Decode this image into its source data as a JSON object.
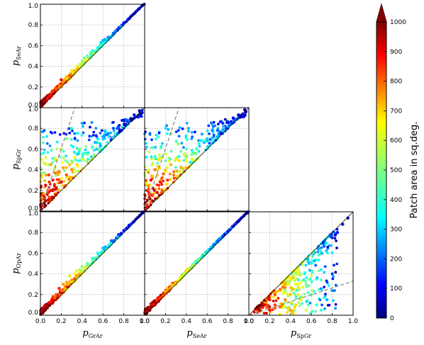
{
  "colorbar": {
    "label": "Patch area in sq.deg.",
    "range": [
      0,
      1000
    ],
    "ticks": [
      "0",
      "100",
      "200",
      "300",
      "400",
      "500",
      "600",
      "700",
      "800",
      "900",
      "1000"
    ],
    "colormap": "jet",
    "extend": "max"
  },
  "chart_data": [
    {
      "type": "scatter",
      "panel": "top-left",
      "xlabel": "",
      "ylabel_main": "p",
      "ylabel_sub": "SeAr",
      "xlim": [
        0,
        1
      ],
      "ylim": [
        0,
        1
      ],
      "grid": true,
      "x_ticks": [],
      "y_ticks": [
        "0.0",
        "0.2",
        "0.4",
        "0.6",
        "0.8",
        "1.0"
      ],
      "reference_lines": [
        {
          "style": "solid",
          "color": "#000000",
          "points": [
            [
              0,
              0
            ],
            [
              1,
              1
            ]
          ]
        }
      ],
      "trend": "tight",
      "points": [
        [
          0.03,
          0.05,
          980
        ],
        [
          0.05,
          0.07,
          950
        ],
        [
          0.08,
          0.11,
          900
        ],
        [
          0.1,
          0.12,
          860
        ],
        [
          0.12,
          0.16,
          820
        ],
        [
          0.15,
          0.18,
          780
        ],
        [
          0.18,
          0.22,
          760
        ],
        [
          0.2,
          0.27,
          900
        ],
        [
          0.22,
          0.25,
          720
        ],
        [
          0.25,
          0.3,
          680
        ],
        [
          0.28,
          0.31,
          800
        ],
        [
          0.3,
          0.36,
          650
        ],
        [
          0.33,
          0.35,
          700
        ],
        [
          0.35,
          0.4,
          600
        ],
        [
          0.38,
          0.42,
          560
        ],
        [
          0.4,
          0.45,
          520
        ],
        [
          0.42,
          0.48,
          480
        ],
        [
          0.45,
          0.5,
          460
        ],
        [
          0.48,
          0.53,
          440
        ],
        [
          0.5,
          0.55,
          420
        ],
        [
          0.55,
          0.58,
          380
        ],
        [
          0.58,
          0.63,
          340
        ],
        [
          0.6,
          0.65,
          310
        ],
        [
          0.62,
          0.66,
          290
        ],
        [
          0.65,
          0.68,
          260
        ],
        [
          0.7,
          0.72,
          220
        ],
        [
          0.75,
          0.77,
          180
        ],
        [
          0.8,
          0.82,
          150
        ],
        [
          0.85,
          0.86,
          120
        ],
        [
          0.9,
          0.91,
          90
        ],
        [
          0.95,
          0.96,
          60
        ],
        [
          0.98,
          0.99,
          30
        ]
      ]
    },
    {
      "type": "scatter",
      "panel": "middle-left",
      "xlabel": "",
      "ylabel_main": "p",
      "ylabel_sub": "SpGr",
      "xlim": [
        0,
        1
      ],
      "ylim": [
        0,
        1
      ],
      "grid": true,
      "x_ticks": [],
      "y_ticks": [
        "0.0",
        "0.2",
        "0.4",
        "0.6",
        "0.8",
        "1.0"
      ],
      "reference_lines": [
        {
          "style": "solid",
          "color": "#000000",
          "points": [
            [
              0,
              0
            ],
            [
              1,
              1
            ]
          ]
        },
        {
          "style": "dashed",
          "color": "#777777",
          "points": [
            [
              0,
              0
            ],
            [
              0.33,
              1
            ]
          ]
        }
      ],
      "trend": "above",
      "points": [
        [
          0.05,
          0.1,
          950
        ],
        [
          0.05,
          0.25,
          900
        ],
        [
          0.08,
          0.35,
          820
        ],
        [
          0.1,
          0.2,
          880
        ],
        [
          0.1,
          0.45,
          700
        ],
        [
          0.12,
          0.3,
          850
        ],
        [
          0.15,
          0.5,
          650
        ],
        [
          0.15,
          0.22,
          920
        ],
        [
          0.18,
          0.38,
          760
        ],
        [
          0.2,
          0.28,
          900
        ],
        [
          0.2,
          0.6,
          560
        ],
        [
          0.22,
          0.42,
          720
        ],
        [
          0.25,
          0.35,
          800
        ],
        [
          0.25,
          0.7,
          480
        ],
        [
          0.28,
          0.45,
          690
        ],
        [
          0.3,
          0.4,
          740
        ],
        [
          0.3,
          0.8,
          420
        ],
        [
          0.33,
          0.52,
          620
        ],
        [
          0.35,
          0.45,
          660
        ],
        [
          0.38,
          0.6,
          520
        ],
        [
          0.4,
          0.5,
          600
        ],
        [
          0.4,
          0.85,
          300
        ],
        [
          0.45,
          0.55,
          480
        ],
        [
          0.5,
          0.62,
          420
        ],
        [
          0.55,
          0.7,
          360
        ],
        [
          0.6,
          0.72,
          300
        ],
        [
          0.65,
          0.75,
          260
        ],
        [
          0.7,
          0.8,
          210
        ],
        [
          0.75,
          0.82,
          180
        ],
        [
          0.8,
          0.88,
          140
        ],
        [
          0.9,
          0.93,
          90
        ],
        [
          0.95,
          0.97,
          50
        ]
      ]
    },
    {
      "type": "scatter",
      "panel": "middle-center",
      "xlabel": "",
      "ylabel_main": "",
      "ylabel_sub": "",
      "xlim": [
        0,
        1
      ],
      "ylim": [
        0,
        1
      ],
      "grid": true,
      "x_ticks": [],
      "y_ticks": [],
      "reference_lines": [
        {
          "style": "solid",
          "color": "#000000",
          "points": [
            [
              0,
              0
            ],
            [
              1,
              1
            ]
          ]
        },
        {
          "style": "dashed",
          "color": "#777777",
          "points": [
            [
              0,
              0
            ],
            [
              0.33,
              1
            ]
          ]
        }
      ],
      "trend": "above",
      "points": [
        [
          0.05,
          0.12,
          950
        ],
        [
          0.06,
          0.3,
          880
        ],
        [
          0.08,
          0.22,
          900
        ],
        [
          0.1,
          0.4,
          760
        ],
        [
          0.12,
          0.18,
          920
        ],
        [
          0.14,
          0.5,
          640
        ],
        [
          0.15,
          0.28,
          860
        ],
        [
          0.18,
          0.36,
          780
        ],
        [
          0.2,
          0.55,
          580
        ],
        [
          0.22,
          0.3,
          830
        ],
        [
          0.25,
          0.45,
          700
        ],
        [
          0.25,
          0.75,
          460
        ],
        [
          0.28,
          0.38,
          760
        ],
        [
          0.3,
          0.5,
          640
        ],
        [
          0.32,
          0.65,
          520
        ],
        [
          0.35,
          0.42,
          700
        ],
        [
          0.38,
          0.55,
          580
        ],
        [
          0.4,
          0.48,
          620
        ],
        [
          0.42,
          0.8,
          320
        ],
        [
          0.45,
          0.55,
          500
        ],
        [
          0.5,
          0.6,
          440
        ],
        [
          0.55,
          0.68,
          380
        ],
        [
          0.6,
          0.7,
          320
        ],
        [
          0.65,
          0.78,
          260
        ],
        [
          0.7,
          0.78,
          220
        ],
        [
          0.75,
          0.85,
          170
        ],
        [
          0.8,
          0.86,
          140
        ],
        [
          0.85,
          0.9,
          110
        ],
        [
          0.9,
          0.93,
          80
        ],
        [
          0.96,
          0.98,
          40
        ]
      ]
    },
    {
      "type": "scatter",
      "panel": "bottom-left",
      "xlabel_main": "p",
      "xlabel_sub": "GrAr",
      "ylabel_main": "p",
      "ylabel_sub": "OpAr",
      "xlim": [
        0,
        1
      ],
      "ylim": [
        0,
        1
      ],
      "grid": true,
      "x_ticks": [
        "0.0",
        "0.2",
        "0.4",
        "0.6",
        "0.8",
        "1.0"
      ],
      "y_ticks": [
        "0.0",
        "0.2",
        "0.4",
        "0.6",
        "0.8",
        "1.0"
      ],
      "reference_lines": [
        {
          "style": "solid",
          "color": "#000000",
          "points": [
            [
              0,
              0
            ],
            [
              1,
              1
            ]
          ]
        }
      ],
      "trend": "tight",
      "points": [
        [
          0.03,
          0.04,
          980
        ],
        [
          0.06,
          0.08,
          950
        ],
        [
          0.08,
          0.12,
          900
        ],
        [
          0.1,
          0.13,
          870
        ],
        [
          0.12,
          0.18,
          820
        ],
        [
          0.15,
          0.2,
          790
        ],
        [
          0.18,
          0.26,
          850
        ],
        [
          0.2,
          0.24,
          760
        ],
        [
          0.22,
          0.3,
          720
        ],
        [
          0.25,
          0.32,
          700
        ],
        [
          0.28,
          0.38,
          660
        ],
        [
          0.3,
          0.34,
          720
        ],
        [
          0.33,
          0.4,
          620
        ],
        [
          0.35,
          0.43,
          600
        ],
        [
          0.38,
          0.44,
          560
        ],
        [
          0.4,
          0.47,
          520
        ],
        [
          0.45,
          0.5,
          470
        ],
        [
          0.5,
          0.55,
          420
        ],
        [
          0.55,
          0.6,
          380
        ],
        [
          0.6,
          0.65,
          320
        ],
        [
          0.62,
          0.66,
          300
        ],
        [
          0.68,
          0.72,
          240
        ],
        [
          0.75,
          0.78,
          180
        ],
        [
          0.8,
          0.82,
          150
        ],
        [
          0.85,
          0.87,
          120
        ],
        [
          0.9,
          0.91,
          90
        ],
        [
          0.95,
          0.96,
          55
        ],
        [
          0.98,
          0.99,
          25
        ]
      ]
    },
    {
      "type": "scatter",
      "panel": "bottom-center",
      "xlabel_main": "p",
      "xlabel_sub": "SeAr",
      "ylabel_main": "",
      "ylabel_sub": "",
      "xlim": [
        0,
        1
      ],
      "ylim": [
        0,
        1
      ],
      "grid": true,
      "x_ticks": [
        "0.0",
        "0.2",
        "0.4",
        "0.6",
        "0.8",
        "1.0"
      ],
      "y_ticks": [],
      "reference_lines": [
        {
          "style": "solid",
          "color": "#000000",
          "points": [
            [
              0,
              0
            ],
            [
              1,
              1
            ]
          ]
        }
      ],
      "trend": "tight",
      "points": [
        [
          0.02,
          0.02,
          990
        ],
        [
          0.05,
          0.05,
          960
        ],
        [
          0.08,
          0.09,
          920
        ],
        [
          0.1,
          0.1,
          880
        ],
        [
          0.12,
          0.13,
          850
        ],
        [
          0.15,
          0.16,
          820
        ],
        [
          0.18,
          0.19,
          780
        ],
        [
          0.2,
          0.21,
          760
        ],
        [
          0.22,
          0.24,
          730
        ],
        [
          0.25,
          0.26,
          700
        ],
        [
          0.28,
          0.29,
          670
        ],
        [
          0.3,
          0.31,
          650
        ],
        [
          0.33,
          0.34,
          620
        ],
        [
          0.35,
          0.37,
          590
        ],
        [
          0.38,
          0.39,
          560
        ],
        [
          0.4,
          0.41,
          540
        ],
        [
          0.45,
          0.46,
          480
        ],
        [
          0.5,
          0.51,
          430
        ],
        [
          0.55,
          0.56,
          380
        ],
        [
          0.6,
          0.61,
          330
        ],
        [
          0.65,
          0.66,
          280
        ],
        [
          0.7,
          0.71,
          230
        ],
        [
          0.75,
          0.76,
          190
        ],
        [
          0.8,
          0.81,
          150
        ],
        [
          0.85,
          0.86,
          120
        ],
        [
          0.9,
          0.91,
          90
        ],
        [
          0.95,
          0.96,
          60
        ],
        [
          0.99,
          0.99,
          20
        ]
      ]
    },
    {
      "type": "scatter",
      "panel": "bottom-right",
      "xlabel_main": "p",
      "xlabel_sub": "SpGr",
      "ylabel_main": "",
      "ylabel_sub": "",
      "xlim": [
        0,
        1
      ],
      "ylim": [
        0,
        1
      ],
      "grid": true,
      "x_ticks": [
        "0.0",
        "0.2",
        "0.4",
        "0.6",
        "0.8",
        "1.0"
      ],
      "y_ticks": [],
      "reference_lines": [
        {
          "style": "solid",
          "color": "#000000",
          "points": [
            [
              0,
              0
            ],
            [
              1,
              1
            ]
          ]
        },
        {
          "style": "dashed",
          "color": "#777777",
          "points": [
            [
              0,
              0
            ],
            [
              1,
              0.33
            ]
          ]
        }
      ],
      "trend": "below",
      "points": [
        [
          0.1,
          0.05,
          950
        ],
        [
          0.15,
          0.1,
          900
        ],
        [
          0.2,
          0.05,
          880
        ],
        [
          0.2,
          0.15,
          860
        ],
        [
          0.25,
          0.1,
          820
        ],
        [
          0.25,
          0.2,
          800
        ],
        [
          0.3,
          0.08,
          780
        ],
        [
          0.3,
          0.25,
          760
        ],
        [
          0.35,
          0.15,
          740
        ],
        [
          0.35,
          0.3,
          700
        ],
        [
          0.4,
          0.05,
          720
        ],
        [
          0.4,
          0.2,
          680
        ],
        [
          0.4,
          0.35,
          640
        ],
        [
          0.45,
          0.1,
          660
        ],
        [
          0.45,
          0.3,
          600
        ],
        [
          0.5,
          0.15,
          600
        ],
        [
          0.5,
          0.4,
          520
        ],
        [
          0.55,
          0.05,
          580
        ],
        [
          0.55,
          0.3,
          480
        ],
        [
          0.6,
          0.2,
          460
        ],
        [
          0.6,
          0.5,
          400
        ],
        [
          0.65,
          0.1,
          430
        ],
        [
          0.65,
          0.35,
          380
        ],
        [
          0.7,
          0.25,
          340
        ],
        [
          0.7,
          0.6,
          300
        ],
        [
          0.75,
          0.15,
          300
        ],
        [
          0.8,
          0.4,
          200
        ],
        [
          0.8,
          0.75,
          170
        ],
        [
          0.85,
          0.8,
          130
        ],
        [
          0.9,
          0.88,
          90
        ],
        [
          0.95,
          0.94,
          50
        ]
      ]
    }
  ]
}
